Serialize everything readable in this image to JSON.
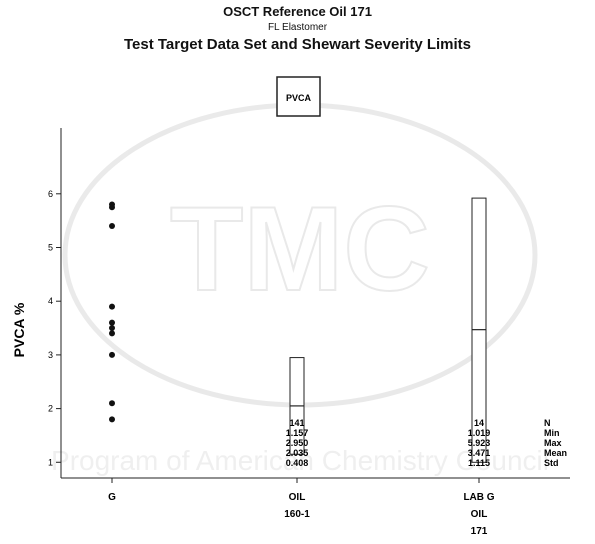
{
  "header": {
    "title": "OSCT Reference Oil 171",
    "subtitle": "FL Elastomer",
    "chart_title": "Test Target Data Set and Shewart Severity Limits"
  },
  "legend_box": "PVCA",
  "watermark_text": "Program of American Chemistry Council",
  "chart_data": {
    "type": "box",
    "title": "Test Target Data Set and Shewart Severity Limits",
    "ylabel": "PVCA %",
    "xlabel": "",
    "ylim": [
      0.5,
      6.1
    ],
    "yticks": [
      1,
      2,
      3,
      4,
      5,
      6
    ],
    "grid": false,
    "categories": [
      {
        "label": [
          "G"
        ]
      },
      {
        "label": [
          "OIL",
          "160-1"
        ]
      },
      {
        "label": [
          "LAB G",
          "OIL",
          "171"
        ]
      }
    ],
    "points": {
      "category_index": 0,
      "values": [
        5.8,
        5.75,
        5.4,
        3.9,
        3.6,
        3.5,
        3.4,
        3.0,
        2.1,
        1.8
      ]
    },
    "boxes": [
      {
        "category_index": 1,
        "low": 1.15,
        "median": 2.05,
        "high": 2.95
      },
      {
        "category_index": 2,
        "low": 1.0,
        "median": 3.47,
        "high": 5.92
      }
    ],
    "stats": {
      "labels": [
        "N",
        "Min",
        "Max",
        "Mean",
        "Std"
      ],
      "columns": [
        {
          "category_index": 1,
          "values": [
            "141",
            "1.157",
            "2.950",
            "2.035",
            "0.408"
          ]
        },
        {
          "category_index": 2,
          "values": [
            "14",
            "1.019",
            "5.923",
            "3.471",
            "1.115"
          ]
        }
      ]
    }
  }
}
